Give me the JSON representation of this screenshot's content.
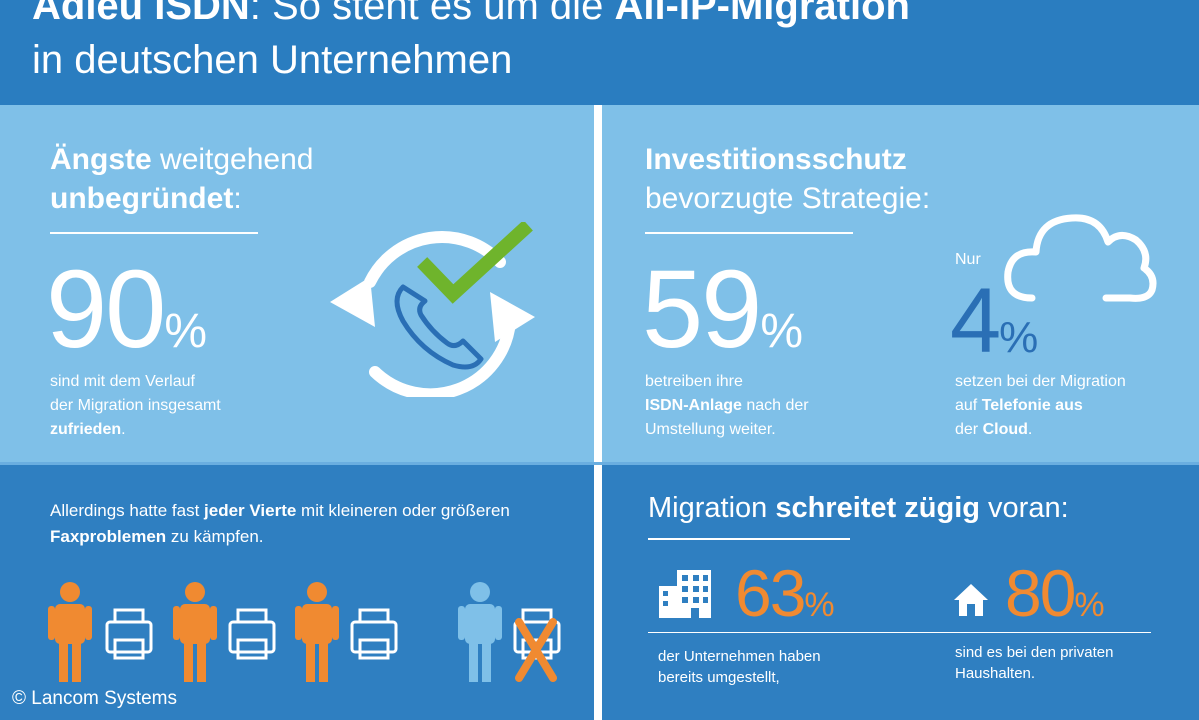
{
  "header": {
    "line1_bold": "Adieu ISDN",
    "line1_rest": ": So steht es um die ",
    "line1_bold2": "All-IP-Migration",
    "line2": "in deutschen Unternehmen"
  },
  "left_top": {
    "title_bold": "Ängste",
    "title_rest": " weitgehend",
    "title_line2_bold": "unbegründet",
    "title_line2_rest": ":",
    "value": "90",
    "unit": "%",
    "desc_line1": "sind mit dem Verlauf",
    "desc_line2": "der Migration insgesamt",
    "desc_line3_bold": "zufrieden",
    "desc_line3_rest": "."
  },
  "right_top": {
    "title_bold": "Investitionsschutz",
    "title_line2": "bevorzugte Strategie:",
    "value": "59",
    "unit": "%",
    "desc_line1": "betreiben ihre",
    "desc_line2_bold": "ISDN-Anlage",
    "desc_line2_rest": " nach der",
    "desc_line3": "Umstellung weiter.",
    "cloud_prefix": "Nur",
    "cloud_value": "4",
    "cloud_unit": "%",
    "cloud_desc_line1": "setzen bei der Migration",
    "cloud_desc_line2_pre": "auf ",
    "cloud_desc_line2_bold": "Telefonie aus",
    "cloud_desc_line3_pre": "der ",
    "cloud_desc_line3_bold": "Cloud",
    "cloud_desc_line3_rest": "."
  },
  "left_bottom": {
    "text1_pre": "Allerdings hatte fast ",
    "text1_bold": "jeder Vierte",
    "text1_rest": " mit kleineren oder größeren",
    "text2_bold": "Faxproblemen",
    "text2_rest": " zu kämpfen."
  },
  "right_bottom": {
    "title_pre": "Migration ",
    "title_bold": "schreitet zügig",
    "title_rest": " voran:",
    "value1": "63",
    "unit1": "%",
    "desc1_line1": "der Unternehmen haben",
    "desc1_line2": "bereits umgestellt,",
    "value2": "80",
    "unit2": "%",
    "desc2_line1": "sind es bei den privaten",
    "desc2_line2": "Haushalten."
  },
  "copyright": "© Lancom Systems",
  "colors": {
    "dark_blue": "#2f7fc1",
    "light_blue": "#7fc0e8",
    "accent_blue": "#2a6fb5",
    "orange": "#f08a31",
    "green": "#6fb42c"
  }
}
